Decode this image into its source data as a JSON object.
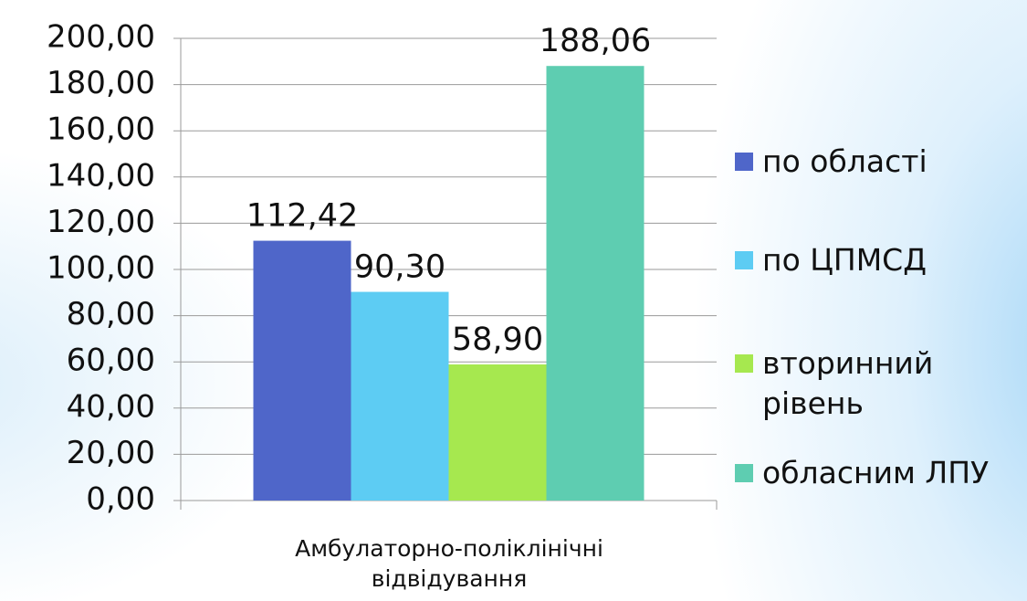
{
  "chart_data": {
    "type": "bar",
    "categories": [
      "Амбулаторно-поліклінічні відвідування"
    ],
    "series": [
      {
        "name": "по області",
        "color": "#4f66c9",
        "values": [
          112.42
        ],
        "value_labels": [
          "112,42"
        ]
      },
      {
        "name": "по ЦПМСД",
        "color": "#5dccf3",
        "values": [
          90.3
        ],
        "value_labels": [
          "90,30"
        ]
      },
      {
        "name": "вторинний рівень",
        "color": "#a6e84f",
        "values": [
          58.9
        ],
        "value_labels": [
          "58,90"
        ]
      },
      {
        "name": "обласним ЛПУ",
        "color": "#5ecdb1",
        "values": [
          188.06
        ],
        "value_labels": [
          "188,06"
        ]
      }
    ],
    "ylim": [
      0,
      200
    ],
    "yticks": [
      {
        "value": 0,
        "label": "0,00"
      },
      {
        "value": 20,
        "label": "20,00"
      },
      {
        "value": 40,
        "label": "40,00"
      },
      {
        "value": 60,
        "label": "60,00"
      },
      {
        "value": 80,
        "label": "80,00"
      },
      {
        "value": 100,
        "label": "100,00"
      },
      {
        "value": 120,
        "label": "120,00"
      },
      {
        "value": 140,
        "label": "140,00"
      },
      {
        "value": 160,
        "label": "160,00"
      },
      {
        "value": 180,
        "label": "180,00"
      },
      {
        "value": 200,
        "label": "200,00"
      }
    ],
    "grid": true,
    "legend": "right"
  }
}
